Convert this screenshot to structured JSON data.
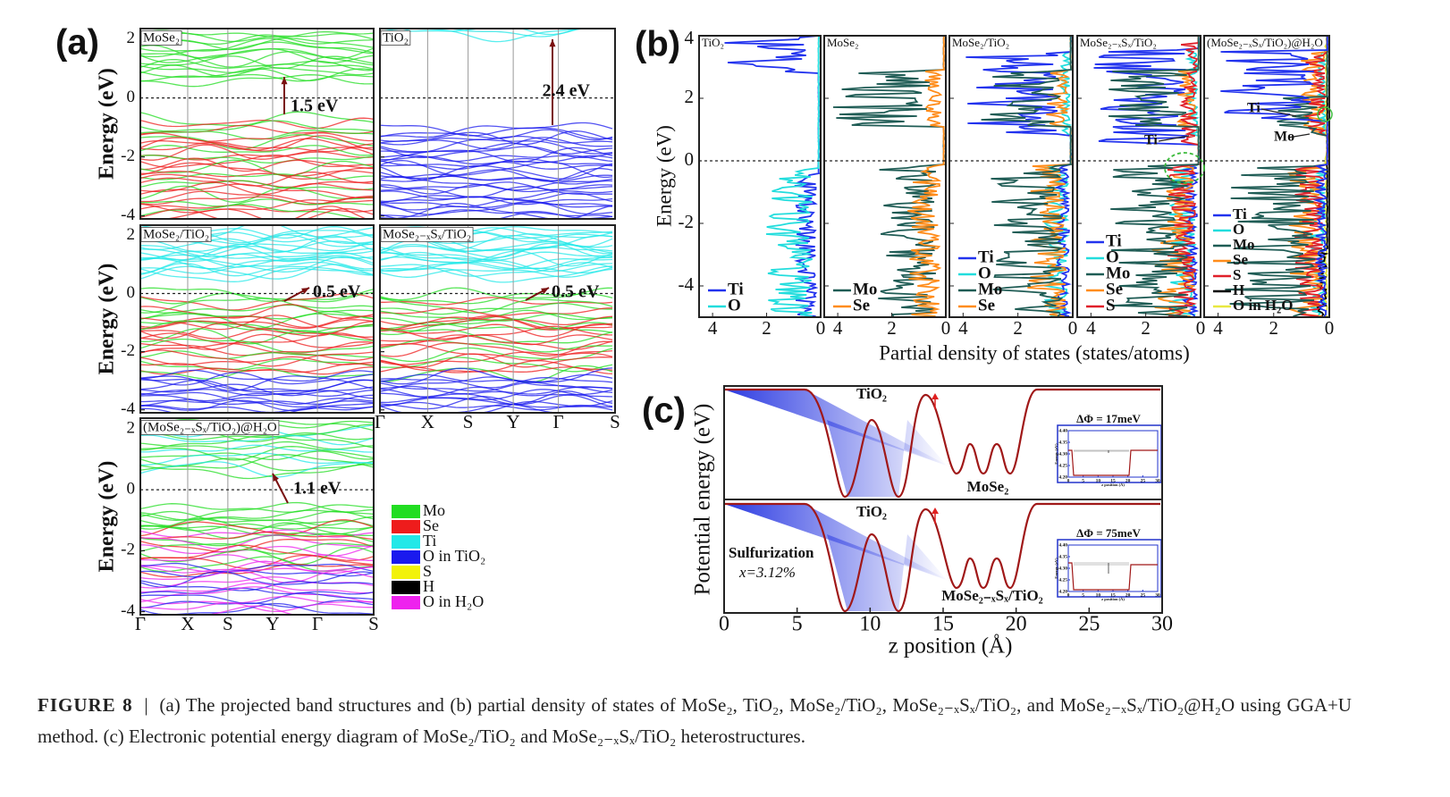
{
  "panel_a": {
    "label": "(a)",
    "y_label": "Energy (eV)",
    "ylim": [
      -4.1,
      2.35
    ],
    "yticks": [
      -4,
      -2,
      0,
      2
    ],
    "kpath": [
      "Γ",
      "X",
      "S",
      "Y",
      "Γ",
      "S"
    ],
    "plots": [
      {
        "title": "MoSe₂",
        "gap": "1.5 eV"
      },
      {
        "title": "TiO₂",
        "gap": "2.4 eV"
      },
      {
        "title": "MoSe₂/TiO₂",
        "gap": "0.5 eV"
      },
      {
        "title": "MoSe₂₋ₓSₓ/TiO₂",
        "gap": "0.5 eV"
      },
      {
        "title": "(MoSe₂₋ₓSₓ/TiO₂)@H₂O",
        "gap": "1.1 eV"
      }
    ],
    "legend": [
      {
        "name": "Mo",
        "color": "#22dd22"
      },
      {
        "name": "Se",
        "color": "#ee1c1c"
      },
      {
        "name": "Ti",
        "color": "#22e8e8"
      },
      {
        "name": "O in TiO₂",
        "color": "#1a1aee"
      },
      {
        "name": "S",
        "color": "#f2f20a"
      },
      {
        "name": "H",
        "color": "#000000"
      },
      {
        "name": "O in H₂O",
        "color": "#ee22ee"
      }
    ]
  },
  "panel_b": {
    "label": "(b)",
    "y_label": "Energy (eV)",
    "x_label": "Partial density of states (states/atoms)",
    "ylim": [
      -5,
      4
    ],
    "yticks": [
      -4,
      -2,
      0,
      2,
      4
    ],
    "xlim": [
      4.5,
      0
    ],
    "xticks": [
      4,
      2,
      0
    ],
    "plots": [
      {
        "title": "TiO₂",
        "legend": [
          {
            "name": "Ti",
            "color": "#2233ee"
          },
          {
            "name": "O",
            "color": "#22dddd"
          }
        ]
      },
      {
        "title": "MoSe₂",
        "legend": [
          {
            "name": "Mo",
            "color": "#1f5c55"
          },
          {
            "name": "Se",
            "color": "#ff8c1a"
          }
        ]
      },
      {
        "title": "MoSe₂/TiO₂",
        "legend": [
          {
            "name": "Ti",
            "color": "#2233ee"
          },
          {
            "name": "O",
            "color": "#22dddd"
          },
          {
            "name": "Mo",
            "color": "#1f5c55"
          },
          {
            "name": "Se",
            "color": "#ff8c1a"
          }
        ]
      },
      {
        "title": "MoSe₂₋ₓSₓ/TiO₂",
        "legend": [
          {
            "name": "Ti",
            "color": "#2233ee"
          },
          {
            "name": "O",
            "color": "#22dddd"
          },
          {
            "name": "Mo",
            "color": "#1f5c55"
          },
          {
            "name": "Se",
            "color": "#ff8c1a"
          },
          {
            "name": "S",
            "color": "#e0202a"
          }
        ]
      },
      {
        "title": "(MoSe₂₋ₓSₓ/TiO₂)@H₂O",
        "legend": [
          {
            "name": "Ti",
            "color": "#2233ee"
          },
          {
            "name": "O",
            "color": "#22dddd"
          },
          {
            "name": "Mo",
            "color": "#1f5c55"
          },
          {
            "name": "Se",
            "color": "#ff8c1a"
          },
          {
            "name": "S",
            "color": "#e0202a"
          },
          {
            "name": "H",
            "color": "#000000"
          },
          {
            "name": "O in H₂O",
            "color": "#e8e840"
          }
        ]
      }
    ],
    "annotations": [
      "Ti",
      "Ti",
      "Mo"
    ]
  },
  "panel_c": {
    "label": "(c)",
    "y_label": "Potential energy (eV)",
    "x_label": "z position (Å)",
    "xlim": [
      0,
      30
    ],
    "xticks": [
      0,
      5,
      10,
      15,
      20,
      25,
      30
    ],
    "plots": [
      {
        "labels": [
          "TiO₂",
          "MoSe₂"
        ],
        "delta": "ΔΦ = 17meV"
      },
      {
        "labels": [
          "TiO₂",
          "Sulfurization",
          "x=3.12%",
          "MoSe₂₋ₓSₓ/TiO₂"
        ],
        "delta": "ΔΦ = 75meV"
      }
    ],
    "inset": {
      "y_label": "Energy (eV)",
      "x_label": "z position (Å)",
      "ylim": [
        4.2,
        4.4
      ],
      "yticks": [
        {
          "value": 4.2,
          "label": "4.20"
        },
        4.25,
        {
          "value": 4.3,
          "label": "4.30"
        },
        4.35,
        {
          "value": 4.4,
          "label": "4.40"
        }
      ],
      "xlim": [
        0,
        30
      ],
      "xticks": [
        0,
        5,
        10,
        15,
        20,
        25,
        30
      ]
    }
  },
  "caption": {
    "label": "FIGURE 8",
    "text": "(a) The projected band structures and (b) partial density of states of MoSe₂, TiO₂, MoSe₂/TiO₂, MoSe₂₋ₓSₓ/TiO₂, and MoSe₂₋ₓSₓ/TiO₂@H₂O using GGA+U method. (c) Electronic potential energy diagram of MoSe₂/TiO₂ and MoSe₂₋ₓSₓ/TiO₂ heterostructures."
  }
}
